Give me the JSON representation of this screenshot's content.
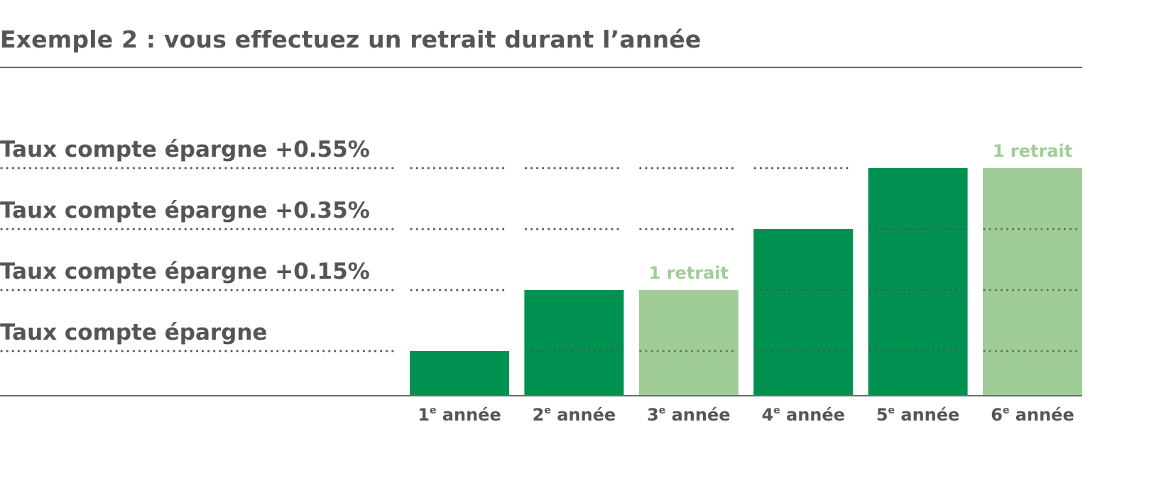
{
  "chart_data": {
    "type": "bar",
    "title": "Exemple 2 : vous effectuez un retrait durant l’année",
    "levels": [
      {
        "label": "Taux compte épargne",
        "value": 0
      },
      {
        "label": "Taux compte épargne +0.15%",
        "value": 0.15
      },
      {
        "label": "Taux compte épargne +0.35%",
        "value": 0.35
      },
      {
        "label": "Taux compte épargne +0.55%",
        "value": 0.55
      }
    ],
    "categories": [
      {
        "num": "1",
        "sup": "e",
        "text": " année"
      },
      {
        "num": "2",
        "sup": "e",
        "text": " année"
      },
      {
        "num": "3",
        "sup": "e",
        "text": " année"
      },
      {
        "num": "4",
        "sup": "e",
        "text": " année"
      },
      {
        "num": "5",
        "sup": "e",
        "text": " année"
      },
      {
        "num": "6",
        "sup": "e",
        "text": " année"
      }
    ],
    "values": [
      0,
      0.15,
      0.15,
      0.35,
      0.55,
      0.55
    ],
    "withdrawal": [
      false,
      false,
      true,
      false,
      false,
      true
    ],
    "annotation_label": "1 retrait",
    "colors": {
      "normal": "#009150",
      "withdrawal": "#a0cc98",
      "text": "#555555",
      "dots": "#555555"
    }
  }
}
